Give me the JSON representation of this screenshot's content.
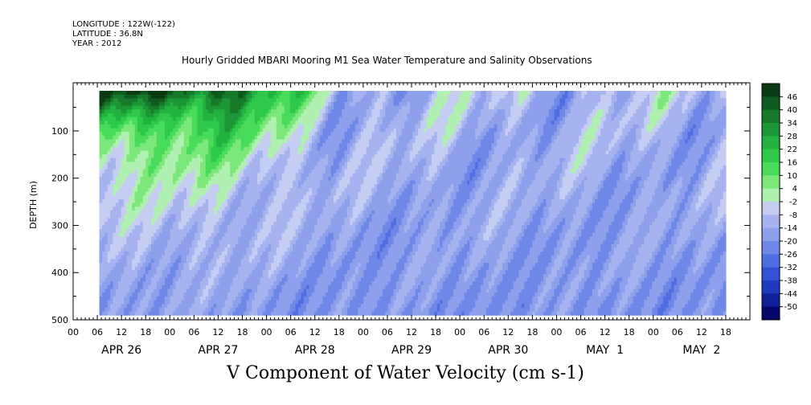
{
  "header": {
    "longitude": "LONGITUDE : 122W(-122)",
    "latitude": "LATITUDE : 36.8N",
    "year": "YEAR : 2012",
    "title": "Hourly Gridded MBARI Mooring M1 Sea Water Temperature and Salinity Observations"
  },
  "chart_data": {
    "type": "heatmap",
    "title": "V Component of Water Velocity (cm s-1)",
    "xlabel": "",
    "ylabel": "DEPTH (m)",
    "y_axis": {
      "ticks": [
        100,
        200,
        300,
        400,
        500
      ],
      "range": [
        15,
        500
      ],
      "inverted": true
    },
    "x_axis": {
      "hour_ticks": [
        "00",
        "06",
        "12",
        "18",
        "00",
        "06",
        "12",
        "18",
        "00",
        "06",
        "12",
        "18",
        "00",
        "06",
        "12",
        "18",
        "00",
        "06",
        "12",
        "18",
        "00",
        "06",
        "12",
        "18",
        "00",
        "06",
        "12",
        "18"
      ],
      "date_labels": [
        "APR 26",
        "APR 27",
        "APR 28",
        "APR 29",
        "APR 30",
        "MAY  1",
        "MAY  2"
      ],
      "range_hours": [
        0,
        168
      ]
    },
    "colorbar": {
      "levels": [
        "46",
        "40",
        "34",
        "28",
        "22",
        "16",
        "10",
        "4",
        "-2",
        "-8",
        "-14",
        "-20",
        "-26",
        "-32",
        "-38",
        "-44",
        "-50"
      ],
      "colors": [
        "#0a3a12",
        "#0f5a1f",
        "#167a2a",
        "#1c9636",
        "#23b240",
        "#2ec84b",
        "#48dc5a",
        "#7ce87c",
        "#b0f0b0",
        "#c6cdf3",
        "#a6b3ef",
        "#8ea0ec",
        "#6f88e8",
        "#506ee3",
        "#3451d6",
        "#1f39bf",
        "#0f1f98",
        "#03066a"
      ]
    },
    "data_gaps": [
      {
        "start_hour": 0,
        "end_hour": 6.5,
        "note": "no data before start"
      },
      {
        "start_hour": 162,
        "end_hour": 168,
        "note": "data ends"
      }
    ],
    "features": [
      "Strong northward (green, up to ~46) flow near surface Apr 26-27",
      "Southward (blue) flow dominates below ~250 m",
      "Alternating green/blue bands in upper 300 m from Apr 28 onward"
    ]
  }
}
